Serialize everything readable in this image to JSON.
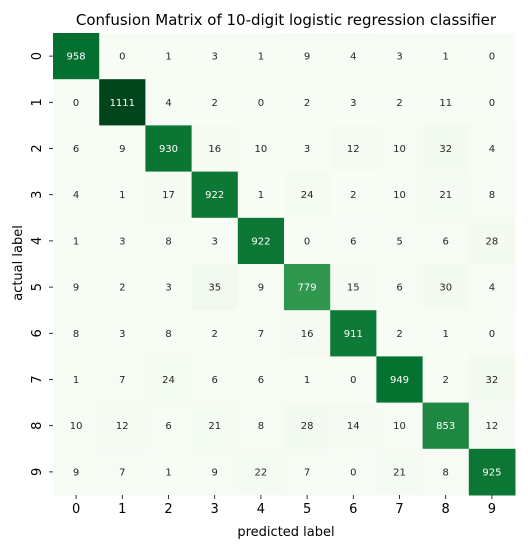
{
  "chart_data": {
    "type": "heatmap",
    "title": "Confusion Matrix of 10-digit logistic regression classifier",
    "xlabel": "predicted label",
    "ylabel": "actual label",
    "x_categories": [
      "0",
      "1",
      "2",
      "3",
      "4",
      "5",
      "6",
      "7",
      "8",
      "9"
    ],
    "y_categories": [
      "0",
      "1",
      "2",
      "3",
      "4",
      "5",
      "6",
      "7",
      "8",
      "9"
    ],
    "values": [
      [
        958,
        0,
        1,
        3,
        1,
        9,
        4,
        3,
        1,
        0
      ],
      [
        0,
        1111,
        4,
        2,
        0,
        2,
        3,
        2,
        11,
        0
      ],
      [
        6,
        9,
        930,
        16,
        10,
        3,
        12,
        10,
        32,
        4
      ],
      [
        4,
        1,
        17,
        922,
        1,
        24,
        2,
        10,
        21,
        8
      ],
      [
        1,
        3,
        8,
        3,
        922,
        0,
        6,
        5,
        6,
        28
      ],
      [
        9,
        2,
        3,
        35,
        9,
        779,
        15,
        6,
        30,
        4
      ],
      [
        8,
        3,
        8,
        2,
        7,
        16,
        911,
        2,
        1,
        0
      ],
      [
        1,
        7,
        24,
        6,
        6,
        1,
        0,
        949,
        2,
        32
      ],
      [
        10,
        12,
        6,
        21,
        8,
        28,
        14,
        10,
        853,
        12
      ],
      [
        9,
        7,
        1,
        9,
        22,
        7,
        0,
        21,
        8,
        925
      ]
    ],
    "colormap": "Greens",
    "value_range": [
      0,
      1111
    ],
    "colorbar": false
  }
}
